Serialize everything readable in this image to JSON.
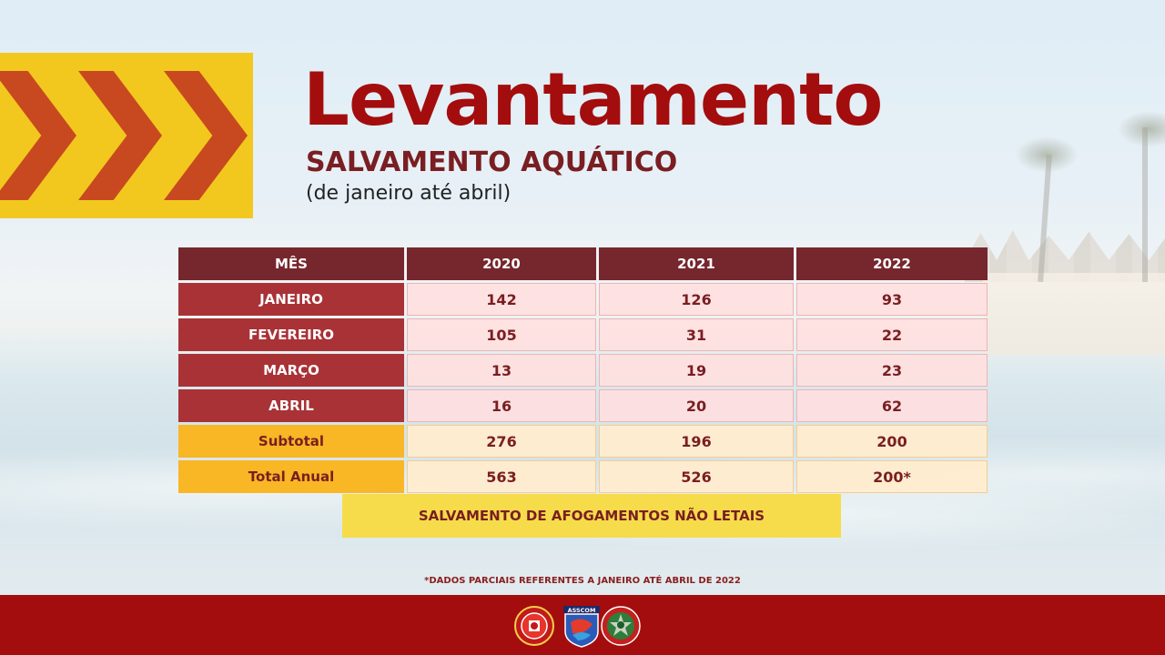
{
  "header": {
    "title": "Levantamento",
    "subtitle": "SALVAMENTO AQUÁTICO",
    "period": "(de janeiro até abril)"
  },
  "table": {
    "headers": [
      "MÊS",
      "2020",
      "2021",
      "2022"
    ],
    "rows": [
      {
        "label": "JANEIRO",
        "values": [
          "142",
          "126",
          "93"
        ]
      },
      {
        "label": "FEVEREIRO",
        "values": [
          "105",
          "31",
          "22"
        ]
      },
      {
        "label": "MARÇO",
        "values": [
          "13",
          "19",
          "23"
        ]
      },
      {
        "label": "ABRIL",
        "values": [
          "16",
          "20",
          "62"
        ]
      }
    ],
    "subtotal": {
      "label": "Subtotal",
      "values": [
        "276",
        "196",
        "200"
      ]
    },
    "total": {
      "label": "Total Anual",
      "values": [
        "563",
        "526",
        "200*"
      ]
    }
  },
  "caption": "SALVAMENTO DE AFOGAMENTOS NÃO LETAIS",
  "footnote": "*DADOS PARCIAIS REFERENTES A JANEIRO ATÉ ABRIL DE 2022",
  "footer": {
    "logos": [
      "bombeiros-emblem-icon",
      "asscom-shield-icon",
      "bombeiros-star-badge-icon"
    ],
    "logo_texts": [
      "ASSCOM"
    ]
  },
  "colors": {
    "title_red": "#a40d0d",
    "header_maroon": "#76262d",
    "month_red": "#a93236",
    "subtotal_orange": "#f9b625",
    "accent_yellow": "#f2c81f",
    "chevron_orange": "#c8491f",
    "footer_red": "#a40d0d"
  }
}
